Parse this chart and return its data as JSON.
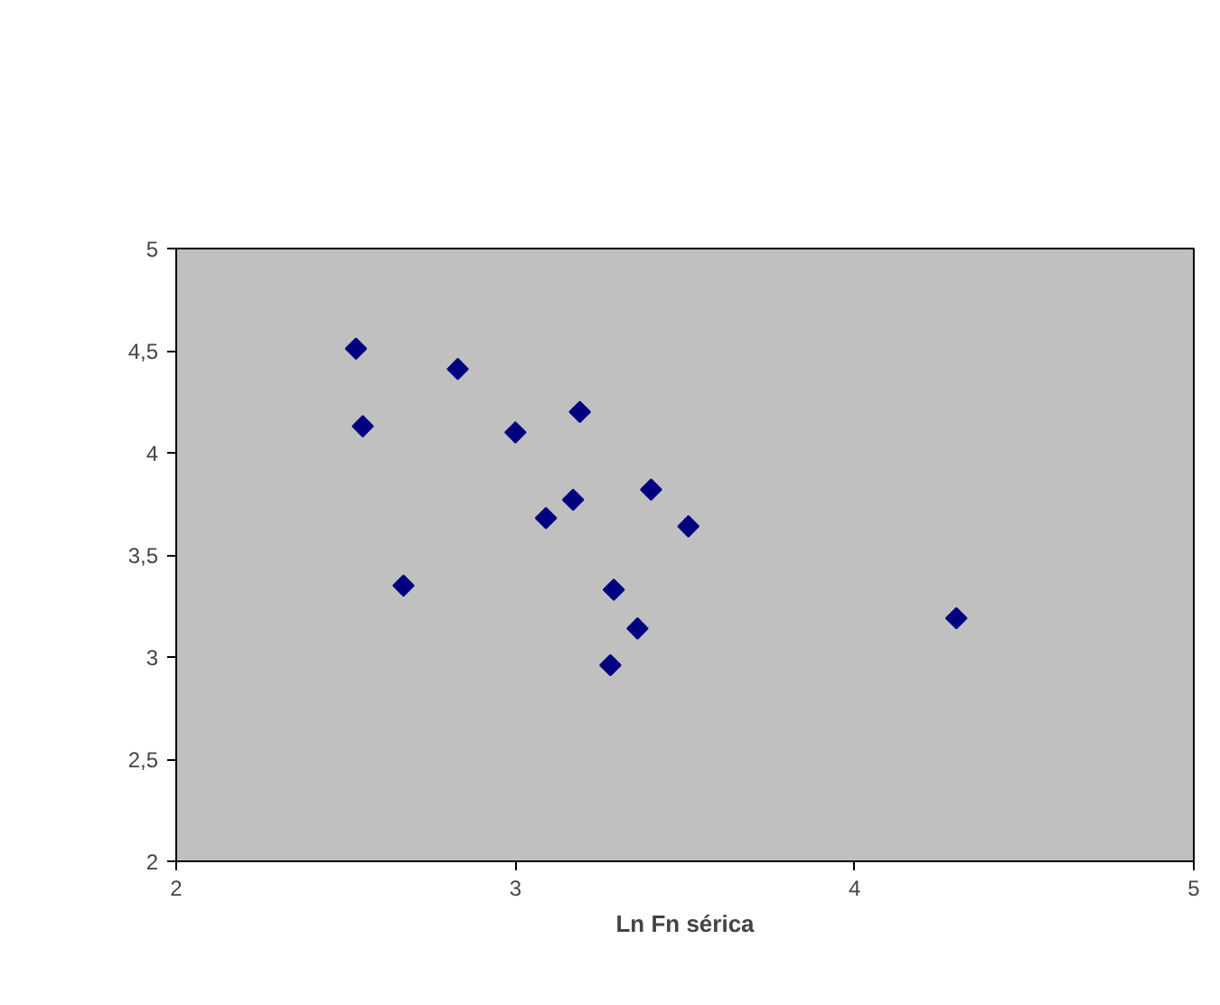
{
  "chart_data": {
    "type": "scatter",
    "xlabel": "Ln Fn sérica",
    "x": [
      2.53,
      2.55,
      2.67,
      2.83,
      3.0,
      3.19,
      3.17,
      3.09,
      3.4,
      3.51,
      3.29,
      3.36,
      3.28,
      4.3
    ],
    "series": [
      {
        "color": "#000080",
        "values": [
          4.51,
          4.13,
          3.35,
          4.41,
          4.1,
          4.2,
          3.77,
          3.68,
          3.82,
          3.64,
          3.33,
          3.14,
          2.96,
          3.19
        ]
      }
    ],
    "marker": "diamond",
    "grid": false,
    "xlim": [
      2,
      5
    ],
    "xticks": [
      2,
      3,
      4,
      5
    ],
    "ylim": [
      2,
      5
    ],
    "yticks": [
      2,
      {
        "value": 2.5,
        "label": "2,5"
      },
      3,
      {
        "value": 3.5,
        "label": "3,5"
      },
      4,
      {
        "value": 4.5,
        "label": "4,5"
      },
      5
    ]
  }
}
